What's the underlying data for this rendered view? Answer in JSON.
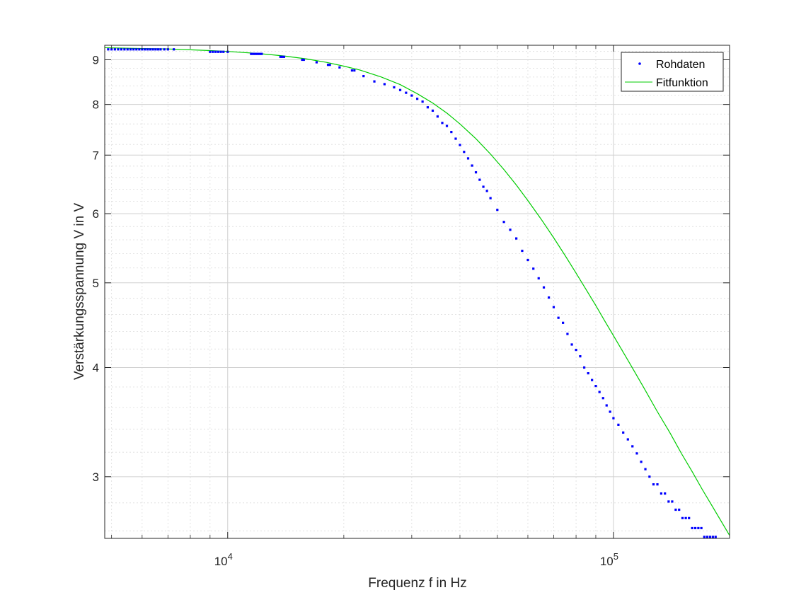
{
  "chart_data": {
    "type": "scatter",
    "xlabel": "Frequenz f in Hz",
    "ylabel": "Verstärkungsspannung V in V",
    "xscale": "log",
    "yscale": "log",
    "xlim": [
      4800,
      200000
    ],
    "ylim": [
      2.55,
      9.35
    ],
    "grid": true,
    "minor_grid": true,
    "legend_position": "top-right",
    "x_ticks": [
      {
        "value": 10000,
        "base": "10",
        "exp": "4"
      },
      {
        "value": 100000,
        "base": "10",
        "exp": "5"
      }
    ],
    "y_ticks": [
      {
        "value": 3,
        "label": "3"
      },
      {
        "value": 4,
        "label": "4"
      },
      {
        "value": 5,
        "label": "5"
      },
      {
        "value": 6,
        "label": "6"
      },
      {
        "value": 7,
        "label": "7"
      },
      {
        "value": 8,
        "label": "8"
      },
      {
        "value": 9,
        "label": "9"
      }
    ],
    "series": [
      {
        "name": "Rohdaten",
        "kind": "points",
        "color": "#0000ff",
        "x": [
          4900,
          5000,
          5100,
          5200,
          5300,
          5400,
          5500,
          5600,
          5700,
          5800,
          5900,
          6000,
          6100,
          6200,
          6300,
          6400,
          6500,
          6600,
          6700,
          6850,
          7000,
          7250,
          9000,
          9150,
          9300,
          9450,
          9600,
          9750,
          10000,
          11500,
          11650,
          11800,
          11950,
          12100,
          12250,
          13700,
          13850,
          14000,
          15600,
          15750,
          17000,
          18200,
          18400,
          19500,
          21000,
          21300,
          22500,
          24000,
          25500,
          27000,
          28000,
          29000,
          30000,
          31000,
          32000,
          33000,
          34000,
          35000,
          36000,
          37000,
          38000,
          39000,
          40000,
          41000,
          42000,
          43000,
          44000,
          45000,
          46000,
          47000,
          48000,
          50000,
          52000,
          54000,
          56000,
          58000,
          60000,
          62000,
          64000,
          66000,
          68000,
          70000,
          72000,
          74000,
          76000,
          78000,
          80000,
          82000,
          84000,
          86000,
          88000,
          90000,
          92000,
          94000,
          96000,
          98000,
          100000,
          103000,
          106000,
          109000,
          112000,
          115000,
          118000,
          121000,
          124000,
          127000,
          130000,
          133000,
          136000,
          139000,
          142000,
          145000,
          148000,
          151000,
          154000,
          157000,
          160000,
          163000,
          166000,
          169000,
          172000,
          175000,
          178000,
          181000,
          184000,
          187000,
          190000,
          194000,
          198000
        ],
        "y": [
          9.25,
          9.25,
          9.25,
          9.25,
          9.25,
          9.25,
          9.25,
          9.25,
          9.25,
          9.25,
          9.25,
          9.25,
          9.25,
          9.25,
          9.25,
          9.25,
          9.25,
          9.25,
          9.25,
          9.25,
          9.25,
          9.25,
          9.19,
          9.19,
          9.19,
          9.19,
          9.19,
          9.19,
          9.19,
          9.14,
          9.14,
          9.14,
          9.14,
          9.14,
          9.14,
          9.07,
          9.07,
          9.07,
          9.0,
          9.0,
          8.94,
          8.88,
          8.88,
          8.82,
          8.75,
          8.75,
          8.62,
          8.5,
          8.44,
          8.37,
          8.31,
          8.25,
          8.19,
          8.12,
          8.06,
          7.94,
          7.87,
          7.75,
          7.62,
          7.56,
          7.44,
          7.31,
          7.19,
          7.06,
          6.94,
          6.81,
          6.69,
          6.56,
          6.44,
          6.37,
          6.25,
          6.06,
          5.87,
          5.75,
          5.62,
          5.44,
          5.31,
          5.19,
          5.06,
          4.94,
          4.81,
          4.69,
          4.56,
          4.5,
          4.37,
          4.25,
          4.19,
          4.12,
          4.0,
          3.94,
          3.87,
          3.81,
          3.75,
          3.69,
          3.62,
          3.56,
          3.5,
          3.44,
          3.37,
          3.31,
          3.25,
          3.19,
          3.12,
          3.06,
          3.0,
          2.94,
          2.94,
          2.87,
          2.87,
          2.81,
          2.81,
          2.75,
          2.75,
          2.69,
          2.69,
          2.69,
          2.62,
          2.62,
          2.62,
          2.62,
          2.56,
          2.56,
          2.56,
          2.56,
          2.56,
          2.5,
          2.5,
          2.5,
          2.5
        ]
      },
      {
        "name": "Fitfunktion",
        "kind": "line",
        "color": "#00cc00",
        "x": [
          4800,
          6000,
          7000,
          8000,
          9000,
          10000,
          12000,
          14000,
          16000,
          18000,
          20000,
          22000,
          25000,
          28000,
          31000,
          34000,
          37000,
          40000,
          44000,
          48000,
          52000,
          56000,
          60000,
          65000,
          70000,
          75000,
          80000,
          85000,
          90000,
          95000,
          100000,
          110000,
          120000,
          130000,
          140000,
          150000,
          160000,
          170000,
          180000,
          190000,
          200000
        ],
        "y": [
          9.29,
          9.27,
          9.26,
          9.24,
          9.22,
          9.2,
          9.15,
          9.09,
          9.02,
          8.94,
          8.85,
          8.76,
          8.6,
          8.43,
          8.23,
          8.03,
          7.82,
          7.6,
          7.31,
          7.02,
          6.74,
          6.47,
          6.21,
          5.91,
          5.63,
          5.37,
          5.13,
          4.91,
          4.71,
          4.52,
          4.35,
          4.05,
          3.79,
          3.56,
          3.37,
          3.19,
          3.04,
          2.9,
          2.78,
          2.67,
          2.57
        ]
      }
    ]
  }
}
